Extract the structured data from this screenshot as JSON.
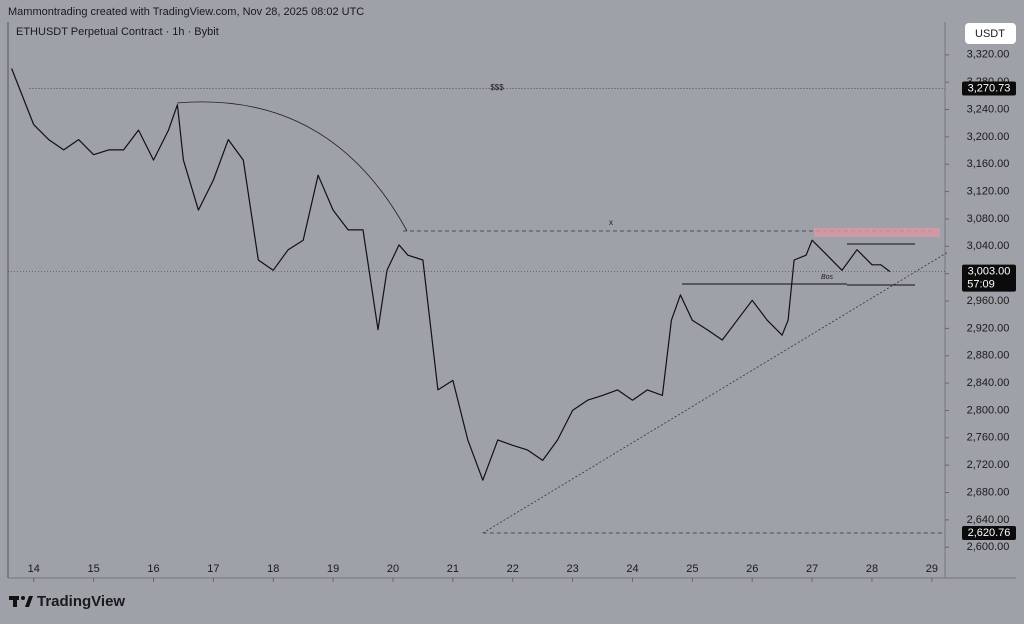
{
  "header": {
    "attribution": "Mammontrading created with TradingView.com, Nov 28, 2025 08:02 UTC",
    "symbol": "ETHUSDT Perpetual Contract · 1h · Bybit",
    "currency": "USDT",
    "brand": "TradingView"
  },
  "chart_data": {
    "type": "line",
    "color": "#111111",
    "x": [
      13.63,
      14,
      14.25,
      14.5,
      14.75,
      15,
      15.25,
      15.5,
      15.75,
      16,
      16.25,
      16.4,
      16.5,
      16.75,
      17,
      17.25,
      17.5,
      17.75,
      18,
      18.25,
      18.5,
      18.75,
      19,
      19.25,
      19.5,
      19.75,
      19.9,
      20.1,
      20.25,
      20.5,
      20.75,
      21,
      21.25,
      21.5,
      21.75,
      22,
      22.25,
      22.5,
      22.75,
      23,
      23.25,
      23.5,
      23.75,
      24,
      24.25,
      24.5,
      24.65,
      24.8,
      25,
      25.25,
      25.5,
      25.75,
      26,
      26.25,
      26.5,
      26.6,
      26.7,
      26.9,
      27,
      27.25,
      27.5,
      27.75,
      28,
      28.15,
      28.3
    ],
    "values": [
      3300,
      3218,
      3196,
      3181,
      3196,
      3174,
      3181,
      3181,
      3210,
      3166,
      3210,
      3247,
      3166,
      3093,
      3137,
      3196,
      3166,
      3020,
      3005,
      3035,
      3049,
      3144,
      3093,
      3064,
      3064,
      2918,
      3005,
      3042,
      3027,
      3020,
      2830,
      2844,
      2757,
      2698,
      2757,
      2749,
      2742,
      2727,
      2757,
      2800,
      2815,
      2822,
      2830,
      2815,
      2830,
      2822,
      2932,
      2969,
      2932,
      2918,
      2903,
      2932,
      2961,
      2932,
      2910,
      2932,
      3020,
      3027,
      3049,
      3027,
      3005,
      3035,
      3013,
      3013,
      3003
    ],
    "xlim": [
      13.57,
      29.22
    ],
    "xticks": [
      14,
      15,
      16,
      17,
      18,
      19,
      20,
      21,
      22,
      23,
      24,
      25,
      26,
      27,
      28,
      29
    ],
    "ylim": [
      2555,
      3368
    ],
    "yticks": [
      {
        "value": 2600,
        "label": "2,600.00"
      },
      {
        "value": 2640,
        "label": "2,640.00"
      },
      {
        "value": 2680,
        "label": "2,680.00"
      },
      {
        "value": 2720,
        "label": "2,720.00"
      },
      {
        "value": 2760,
        "label": "2,760.00"
      },
      {
        "value": 2800,
        "label": "2,800.00"
      },
      {
        "value": 2840,
        "label": "2,840.00"
      },
      {
        "value": 2880,
        "label": "2,880.00"
      },
      {
        "value": 2920,
        "label": "2,920.00"
      },
      {
        "value": 2960,
        "label": "2,960.00"
      },
      {
        "value": 3000,
        "label": "3,000.00"
      },
      {
        "value": 3040,
        "label": "3,040.00"
      },
      {
        "value": 3080,
        "label": "3,080.00"
      },
      {
        "value": 3120,
        "label": "3,120.00"
      },
      {
        "value": 3160,
        "label": "3,160.00"
      },
      {
        "value": 3200,
        "label": "3,200.00"
      },
      {
        "value": 3240,
        "label": "3,240.00"
      },
      {
        "value": 3280,
        "label": "3,280.00"
      },
      {
        "value": 3320,
        "label": "3,320.00"
      }
    ],
    "price_lines": [
      {
        "value": 3270.73,
        "label": "3,270.73"
      },
      {
        "value": 2620.76,
        "label": "2,620.76"
      }
    ],
    "current_price": {
      "value": 3003,
      "label": "3,003.00"
    },
    "countdown": "57:09",
    "annotations": {
      "liquidity": "$$$",
      "level": "x",
      "bos": "Bos"
    }
  }
}
